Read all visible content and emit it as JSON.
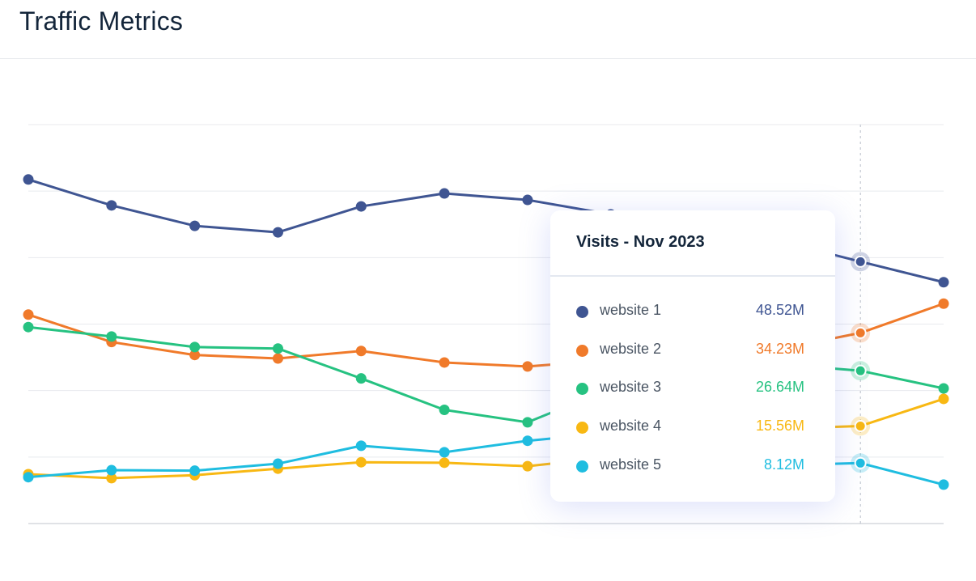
{
  "header": {
    "title": "Traffic Metrics"
  },
  "chart_data": {
    "type": "line",
    "title": "Traffic Metrics",
    "x": [
      1,
      2,
      3,
      4,
      5,
      6,
      7,
      8,
      9,
      10,
      11,
      12
    ],
    "ylim": [
      -4,
      76
    ],
    "grid": true,
    "unit": "M",
    "series": [
      {
        "name": "website 1",
        "color": "#3f5592",
        "values": [
          65.0,
          59.8,
          55.7,
          54.4,
          59.6,
          62.2,
          60.9,
          58.0,
          55.6,
          52.8,
          48.52,
          44.4
        ]
      },
      {
        "name": "website 2",
        "color": "#f07a2a",
        "values": [
          37.9,
          32.4,
          29.8,
          29.1,
          30.6,
          28.3,
          27.5,
          28.8,
          29.6,
          30.9,
          34.23,
          40.1
        ]
      },
      {
        "name": "website 3",
        "color": "#26c281",
        "values": [
          35.4,
          33.5,
          31.4,
          31.1,
          25.1,
          18.8,
          16.3,
          23.1,
          26.4,
          28.0,
          26.64,
          23.1
        ]
      },
      {
        "name": "website 4",
        "color": "#f8b813",
        "values": [
          5.9,
          5.1,
          5.7,
          7.0,
          8.3,
          8.2,
          7.5,
          9.3,
          12.6,
          15.0,
          15.56,
          21.0
        ]
      },
      {
        "name": "website 5",
        "color": "#1fbde0",
        "values": [
          5.3,
          6.7,
          6.6,
          8.0,
          11.6,
          10.3,
          12.6,
          14.2,
          10.2,
          7.7,
          8.12,
          3.8
        ]
      }
    ],
    "highlight_index": 10
  },
  "tooltip": {
    "title": "Visits - Nov 2023",
    "rows": [
      {
        "label": "website 1",
        "value": "48.52M",
        "color": "#3f5592"
      },
      {
        "label": "website 2",
        "value": "34.23M",
        "color": "#f07a2a"
      },
      {
        "label": "website 3",
        "value": "26.64M",
        "color": "#26c281"
      },
      {
        "label": "website 4",
        "value": "15.56M",
        "color": "#f8b813"
      },
      {
        "label": "website 5",
        "value": "8.12M",
        "color": "#1fbde0"
      }
    ]
  }
}
